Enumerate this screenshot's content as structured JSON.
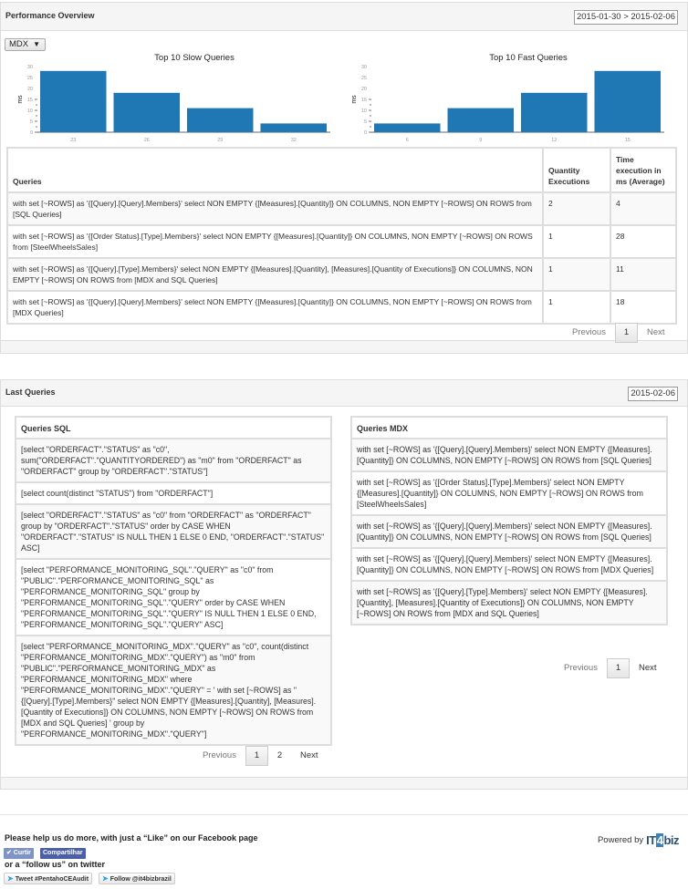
{
  "performance": {
    "title": "Performance Overview",
    "date_range": "2015-01-30 > 2015-02-06",
    "selector": {
      "value": "MDX",
      "icon": "caret-down-icon"
    },
    "table": {
      "headers": [
        "Queries",
        "Quantity Executions",
        "Time execution in ms (Average)"
      ],
      "rows": [
        {
          "query": "with set [~ROWS] as '{[Query].[Query].Members}' select NON EMPTY {[Measures].[Quantity]} ON COLUMNS, NON EMPTY [~ROWS] ON ROWS from [SQL Queries]",
          "qty": "2",
          "time": "4"
        },
        {
          "query": "with set [~ROWS] as '{[Order Status].[Type].Members}' select NON EMPTY {[Measures].[Quantity]} ON COLUMNS, NON EMPTY [~ROWS] ON ROWS from [SteelWheelsSales]",
          "qty": "1",
          "time": "28"
        },
        {
          "query": "with set [~ROWS] as '{[Query].[Type].Members}' select NON EMPTY {[Measures].[Quantity], [Measures].[Quantity of Executions]} ON COLUMNS, NON EMPTY [~ROWS] ON ROWS from [MDX and SQL Queries]",
          "qty": "1",
          "time": "11"
        },
        {
          "query": "with set [~ROWS] as '{[Query].[Query].Members}' select NON EMPTY {[Measures].[Quantity]} ON COLUMNS, NON EMPTY [~ROWS] ON ROWS from [MDX Queries]",
          "qty": "1",
          "time": "18"
        }
      ]
    },
    "pager": {
      "previous": "Previous",
      "page": "1",
      "next": "Next"
    }
  },
  "chart_data": [
    {
      "type": "bar",
      "title": "Top 10 Slow Queries",
      "categories": [
        "23",
        "26",
        "29",
        "32"
      ],
      "values": [
        28,
        18,
        11,
        4
      ],
      "xlabel": "",
      "ylabel": "ms",
      "ylim": [
        0,
        30
      ],
      "yticks": [
        0,
        5,
        10,
        15,
        20,
        25,
        30
      ],
      "color": "#1f77b4",
      "grid": false
    },
    {
      "type": "bar",
      "title": "Top 10 Fast Queries",
      "categories": [
        "6",
        "9",
        "12",
        "15"
      ],
      "values": [
        4,
        11,
        18,
        28
      ],
      "xlabel": "",
      "ylabel": "ms",
      "ylim": [
        0,
        30
      ],
      "yticks": [
        0,
        5,
        10,
        15,
        20,
        25,
        30
      ],
      "color": "#1f77b4",
      "grid": false
    }
  ],
  "last_queries": {
    "title": "Last Queries",
    "date": "2015-02-06",
    "sql": {
      "title": "Queries SQL",
      "items": [
        "[select \"ORDERFACT\".\"STATUS\" as \"c0\", sum(\"ORDERFACT\".\"QUANTITYORDERED\") as \"m0\" from \"ORDERFACT\" as \"ORDERFACT\" group by \"ORDERFACT\".\"STATUS\"]",
        "[select count(distinct \"STATUS\") from \"ORDERFACT\"]",
        "[select \"ORDERFACT\".\"STATUS\" as \"c0\" from \"ORDERFACT\" as \"ORDERFACT\" group by \"ORDERFACT\".\"STATUS\" order by CASE WHEN \"ORDERFACT\".\"STATUS\" IS NULL THEN 1 ELSE 0 END, \"ORDERFACT\".\"STATUS\" ASC]",
        "[select \"PERFORMANCE_MONITORING_SQL\".\"QUERY\" as \"c0\" from \"PUBLIC\".\"PERFORMANCE_MONITORING_SQL\" as \"PERFORMANCE_MONITORING_SQL\" group by \"PERFORMANCE_MONITORING_SQL\".\"QUERY\" order by CASE WHEN \"PERFORMANCE_MONITORING_SQL\".\"QUERY\" IS NULL THEN 1 ELSE 0 END, \"PERFORMANCE_MONITORING_SQL\".\"QUERY\" ASC]",
        "[select \"PERFORMANCE_MONITORING_MDX\".\"QUERY\" as \"c0\", count(distinct \"PERFORMANCE_MONITORING_MDX\".\"QUERY\") as \"m0\" from \"PUBLIC\".\"PERFORMANCE_MONITORING_MDX\" as \"PERFORMANCE_MONITORING_MDX\" where \"PERFORMANCE_MONITORING_MDX\".\"QUERY\" = ' with set [~ROWS] as \"{[Query].[Type].Members}\" select NON EMPTY {[Measures].[Quantity], [Measures].[Quantity of Executions]} ON COLUMNS, NON EMPTY [~ROWS] ON ROWS from [MDX and SQL Queries] ' group by \"PERFORMANCE_MONITORING_MDX\".\"QUERY\"]"
      ],
      "pager": {
        "previous": "Previous",
        "page": "1",
        "page2": "2",
        "next": "Next"
      }
    },
    "mdx": {
      "title": "Queries MDX",
      "items": [
        "with set [~ROWS] as '{[Query].[Query].Members}' select NON EMPTY {[Measures].[Quantity]} ON COLUMNS, NON EMPTY [~ROWS] ON ROWS from [SQL Queries]",
        "with set [~ROWS] as '{[Order Status].[Type].Members}' select NON EMPTY {[Measures].[Quantity]} ON COLUMNS, NON EMPTY [~ROWS] ON ROWS from [SteelWheelsSales]",
        "with set [~ROWS] as '{[Query].[Query].Members}' select NON EMPTY {[Measures].[Quantity]} ON COLUMNS, NON EMPTY [~ROWS] ON ROWS from [SQL Queries]",
        "with set [~ROWS] as '{[Query].[Query].Members}' select NON EMPTY {[Measures].[Quantity]} ON COLUMNS, NON EMPTY [~ROWS] ON ROWS from [MDX Queries]",
        "with set [~ROWS] as '{[Query].[Type].Members}' select NON EMPTY {[Measures].[Quantity], [Measures].[Quantity of Executions]} ON COLUMNS, NON EMPTY [~ROWS] ON ROWS from [MDX and SQL Queries]"
      ],
      "pager": {
        "previous": "Previous",
        "page": "1",
        "next": "Next"
      }
    }
  },
  "footer": {
    "facebook_text": "Please help us do more, with just a “Like” on our Facebook page",
    "like_label": "✔ Curtir",
    "share_label": "Compartilhar",
    "twitter_text": "or a “follow us” on twitter",
    "tweet_label": "Tweet #PentahoCEAudit",
    "follow_label": "Follow @it4bizbrazil",
    "powered_by": "Powered by",
    "logo_left": "IT",
    "logo_four": "4",
    "logo_right": "biz",
    "colors": {
      "facebook_like": "#7f93c4",
      "facebook_share": "#4a5fa6",
      "bar": "#1f77b4"
    }
  }
}
